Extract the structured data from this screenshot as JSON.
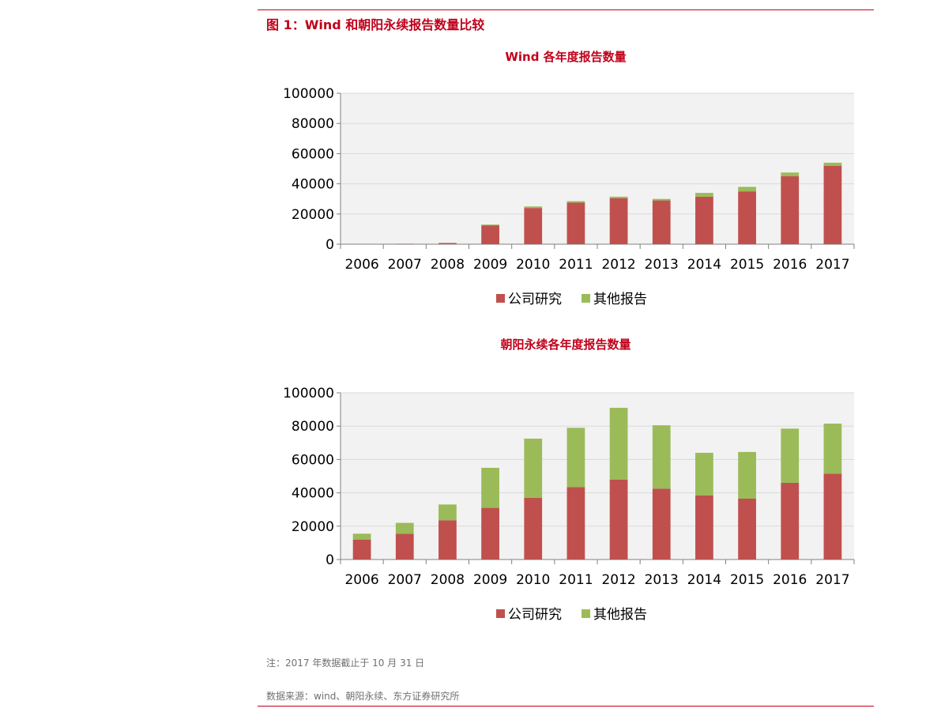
{
  "figure_title": "图 1：Wind 和朝阳永续报告数量比较",
  "note": "注：2017 年数据截止于 10 月 31 日",
  "source": "数据来源：wind、朝阳永续、东方证券研究所",
  "colors": {
    "accent": "#c0001a",
    "company_research": "#c0504d",
    "other_reports": "#9bbb59",
    "plot_background": "#f2f2f2",
    "grid": "#d9d9d9"
  },
  "chart_data": [
    {
      "type": "bar",
      "stacked": true,
      "title": "Wind 各年度报告数量",
      "categories": [
        "2006",
        "2007",
        "2008",
        "2009",
        "2010",
        "2011",
        "2012",
        "2013",
        "2014",
        "2015",
        "2016",
        "2017"
      ],
      "series": [
        {
          "name": "公司研究",
          "values": [
            0,
            300,
            800,
            12500,
            24000,
            27500,
            30500,
            29000,
            31500,
            35000,
            45000,
            52000
          ]
        },
        {
          "name": "其他报告",
          "values": [
            0,
            0,
            0,
            500,
            1000,
            1000,
            1000,
            1000,
            2500,
            3000,
            2500,
            2000
          ]
        }
      ],
      "yticks": [
        "0",
        "20000",
        "40000",
        "60000",
        "80000",
        "100000"
      ],
      "ylim": [
        0,
        100000
      ],
      "grid": true,
      "legend": "bottom"
    },
    {
      "type": "bar",
      "stacked": true,
      "title": "朝阳永续各年度报告数量",
      "categories": [
        "2006",
        "2007",
        "2008",
        "2009",
        "2010",
        "2011",
        "2012",
        "2013",
        "2014",
        "2015",
        "2016",
        "2017"
      ],
      "series": [
        {
          "name": "公司研究",
          "values": [
            12000,
            15500,
            23500,
            31000,
            37000,
            43500,
            48000,
            42500,
            38500,
            36500,
            46000,
            51500
          ]
        },
        {
          "name": "其他报告",
          "values": [
            3500,
            6500,
            9500,
            24000,
            35500,
            35500,
            43000,
            38000,
            25500,
            28000,
            32500,
            30000
          ]
        }
      ],
      "yticks": [
        "0",
        "20000",
        "40000",
        "60000",
        "80000",
        "100000"
      ],
      "ylim": [
        0,
        100000
      ],
      "grid": true,
      "legend": "bottom"
    }
  ]
}
